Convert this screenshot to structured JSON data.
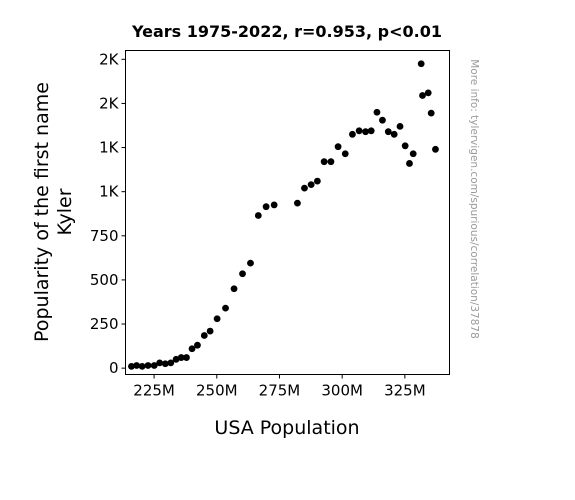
{
  "chart_data": {
    "type": "scatter",
    "title": "Years 1975-2022, r=0.953, p<0.01",
    "xlabel": "USA Population",
    "ylabel_lines": [
      "Popularity of the first name",
      "Kyler"
    ],
    "watermark": "More info: tylervigen.com/spurious/correlation/37878",
    "xlim": [
      213.6,
      342.8
    ],
    "ylim": [
      -36,
      1800
    ],
    "x_ticks": [
      {
        "value": 225,
        "label": "225M"
      },
      {
        "value": 250,
        "label": "250M"
      },
      {
        "value": 275,
        "label": "275M"
      },
      {
        "value": 300,
        "label": "300M"
      },
      {
        "value": 325,
        "label": "325M"
      }
    ],
    "y_ticks": [
      {
        "value": 0,
        "label": "0"
      },
      {
        "value": 250,
        "label": "250"
      },
      {
        "value": 500,
        "label": "500"
      },
      {
        "value": 750,
        "label": "750"
      },
      {
        "value": 1000,
        "label": "1K"
      },
      {
        "value": 1250,
        "label": "1K"
      },
      {
        "value": 1500,
        "label": "2K"
      },
      {
        "value": 1750,
        "label": "2K"
      }
    ],
    "point_color": "#000000",
    "x": [
      215.97,
      218.04,
      220.24,
      222.58,
      225.06,
      227.22,
      229.47,
      231.66,
      233.79,
      235.82,
      237.92,
      240.13,
      242.29,
      245.02,
      247.34,
      250.13,
      253.49,
      256.89,
      260.26,
      263.44,
      266.56,
      269.67,
      272.88,
      282.16,
      284.97,
      287.63,
      290.11,
      292.81,
      295.52,
      298.38,
      301.23,
      304.09,
      306.77,
      309.33,
      311.58,
      313.87,
      316.06,
      318.39,
      320.74,
      323.07,
      325.12,
      326.84,
      328.33,
      331.51,
      332.03,
      334.32,
      335.5,
      337.2
    ],
    "y": [
      10,
      15,
      10,
      15,
      15,
      30,
      25,
      30,
      50,
      60,
      60,
      110,
      130,
      185,
      210,
      280,
      340,
      450,
      535,
      595,
      865,
      915,
      925,
      935,
      1020,
      1040,
      1060,
      1170,
      1170,
      1255,
      1215,
      1325,
      1345,
      1340,
      1345,
      1450,
      1405,
      1340,
      1325,
      1370,
      1260,
      1160,
      1215,
      1725,
      1545,
      1560,
      1445,
      1240
    ]
  }
}
